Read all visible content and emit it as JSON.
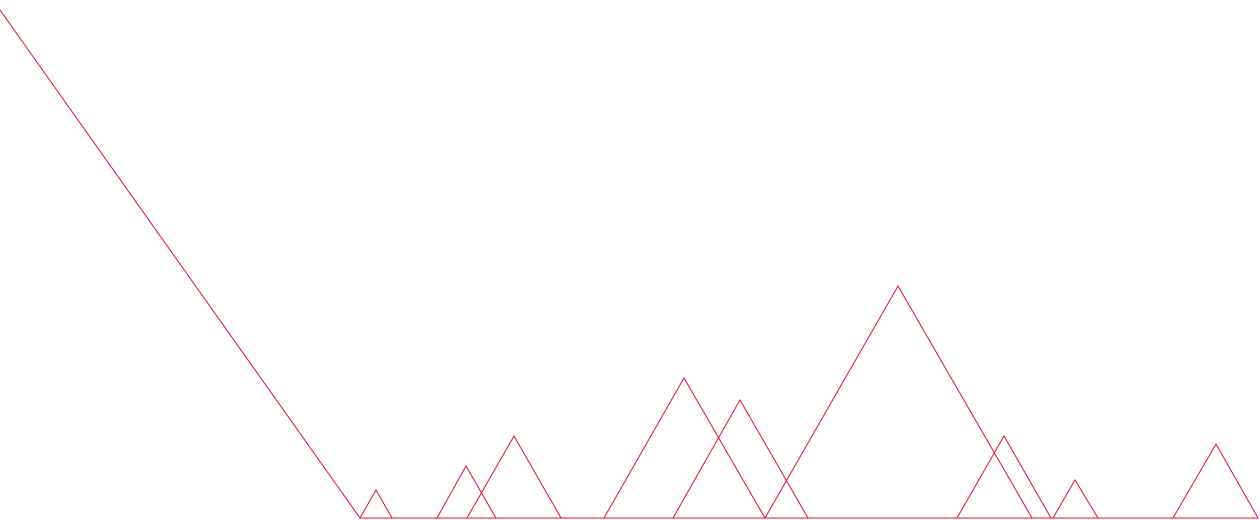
{
  "drawing": {
    "line_color": "#e0102e",
    "background_color": "#ffffff"
  }
}
